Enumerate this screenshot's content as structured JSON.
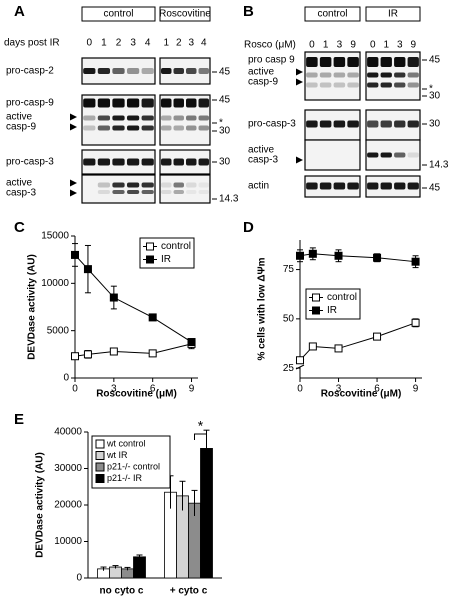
{
  "panel_a": {
    "label": "A",
    "groups": [
      "control",
      "Roscovitine"
    ],
    "row_label": "days post IR",
    "lanes": [
      [
        "0",
        "1",
        "2",
        "3",
        "4"
      ],
      [
        "1",
        "2",
        "3",
        "4"
      ]
    ],
    "blots": [
      {
        "labels": [
          "pro-casp-2"
        ],
        "markers": [
          "45"
        ]
      },
      {
        "labels": [
          "pro-casp-9",
          "active",
          "casp-9"
        ],
        "markers": [
          "45",
          "*",
          "30"
        ]
      },
      {
        "labels": [
          "pro-casp-3"
        ],
        "markers": [
          "30"
        ]
      },
      {
        "labels": [
          "active",
          "casp-3"
        ],
        "markers": [
          "14.3"
        ]
      }
    ]
  },
  "panel_b": {
    "label": "B",
    "groups": [
      "control",
      "IR"
    ],
    "row_label": "Rosco (μM)",
    "lanes": [
      [
        "0",
        "1",
        "3",
        "9"
      ],
      [
        "0",
        "1",
        "3",
        "9"
      ]
    ],
    "blots": [
      {
        "labels": [
          "pro casp 9",
          "active",
          "casp-9"
        ],
        "markers": [
          "45",
          "*",
          "30"
        ]
      },
      {
        "labels": [
          "pro-casp-3"
        ],
        "markers": [
          "30"
        ]
      },
      {
        "labels": [
          "active",
          "casp-3"
        ],
        "markers": [
          "14.3"
        ]
      },
      {
        "labels": [
          "actin"
        ],
        "markers": [
          "45"
        ]
      }
    ]
  },
  "chart_data": [
    {
      "type": "line",
      "panel": "C",
      "xlabel": "Roscovitine (μM)",
      "ylabel": "DEVDase activity (AU)",
      "x": [
        0,
        1,
        3,
        6,
        9
      ],
      "xlim": [
        0,
        9.5
      ],
      "xticks": [
        0,
        3,
        6,
        9
      ],
      "ylim": [
        0,
        15000
      ],
      "yticks": [
        0,
        5000,
        10000,
        15000
      ],
      "series": [
        {
          "name": "control",
          "color": "#ffffff",
          "values": [
            2300,
            2500,
            2800,
            2600,
            3600
          ],
          "errors": [
            300,
            400,
            300,
            200,
            500
          ]
        },
        {
          "name": "IR",
          "color": "#000000",
          "values": [
            13000,
            11500,
            8500,
            6400,
            3800
          ],
          "errors": [
            1200,
            2500,
            1200,
            200,
            300
          ]
        }
      ]
    },
    {
      "type": "line",
      "panel": "D",
      "xlabel": "Roscovitine (μM)",
      "ylabel": "% cells with low ΔΨm",
      "x": [
        0,
        1,
        3,
        6,
        9
      ],
      "xlim": [
        0,
        9.5
      ],
      "xticks": [
        0,
        3,
        6,
        9
      ],
      "ylim": [
        20,
        90
      ],
      "yticks": [
        25,
        50,
        75
      ],
      "series": [
        {
          "name": "control",
          "color": "#ffffff",
          "values": [
            29,
            36,
            35,
            41,
            48
          ],
          "errors": [
            1,
            1,
            1,
            1,
            2
          ]
        },
        {
          "name": "IR",
          "color": "#000000",
          "values": [
            82,
            83,
            82,
            81,
            79
          ],
          "errors": [
            3,
            3,
            3,
            2,
            3
          ]
        }
      ]
    },
    {
      "type": "bar",
      "panel": "E",
      "ylabel": "DEVDase activity (AU)",
      "annotation": "*",
      "categories": [
        "no cyto c",
        "+ cyto c"
      ],
      "ylim": [
        0,
        40000
      ],
      "yticks": [
        0,
        10000,
        20000,
        30000,
        40000
      ],
      "series": [
        {
          "name": "wt control",
          "color": "#ffffff",
          "values": [
            2500,
            23500
          ],
          "errors": [
            500,
            4500
          ]
        },
        {
          "name": "wt IR",
          "color": "#d4d4d4",
          "values": [
            3000,
            22500
          ],
          "errors": [
            400,
            4000
          ]
        },
        {
          "name": "p21-/- control",
          "color": "#8c8c8c",
          "values": [
            2500,
            20500
          ],
          "errors": [
            400,
            3500
          ]
        },
        {
          "name": "p21-/- IR",
          "color": "#000000",
          "values": [
            5800,
            35500
          ],
          "errors": [
            500,
            5000
          ]
        }
      ]
    }
  ]
}
